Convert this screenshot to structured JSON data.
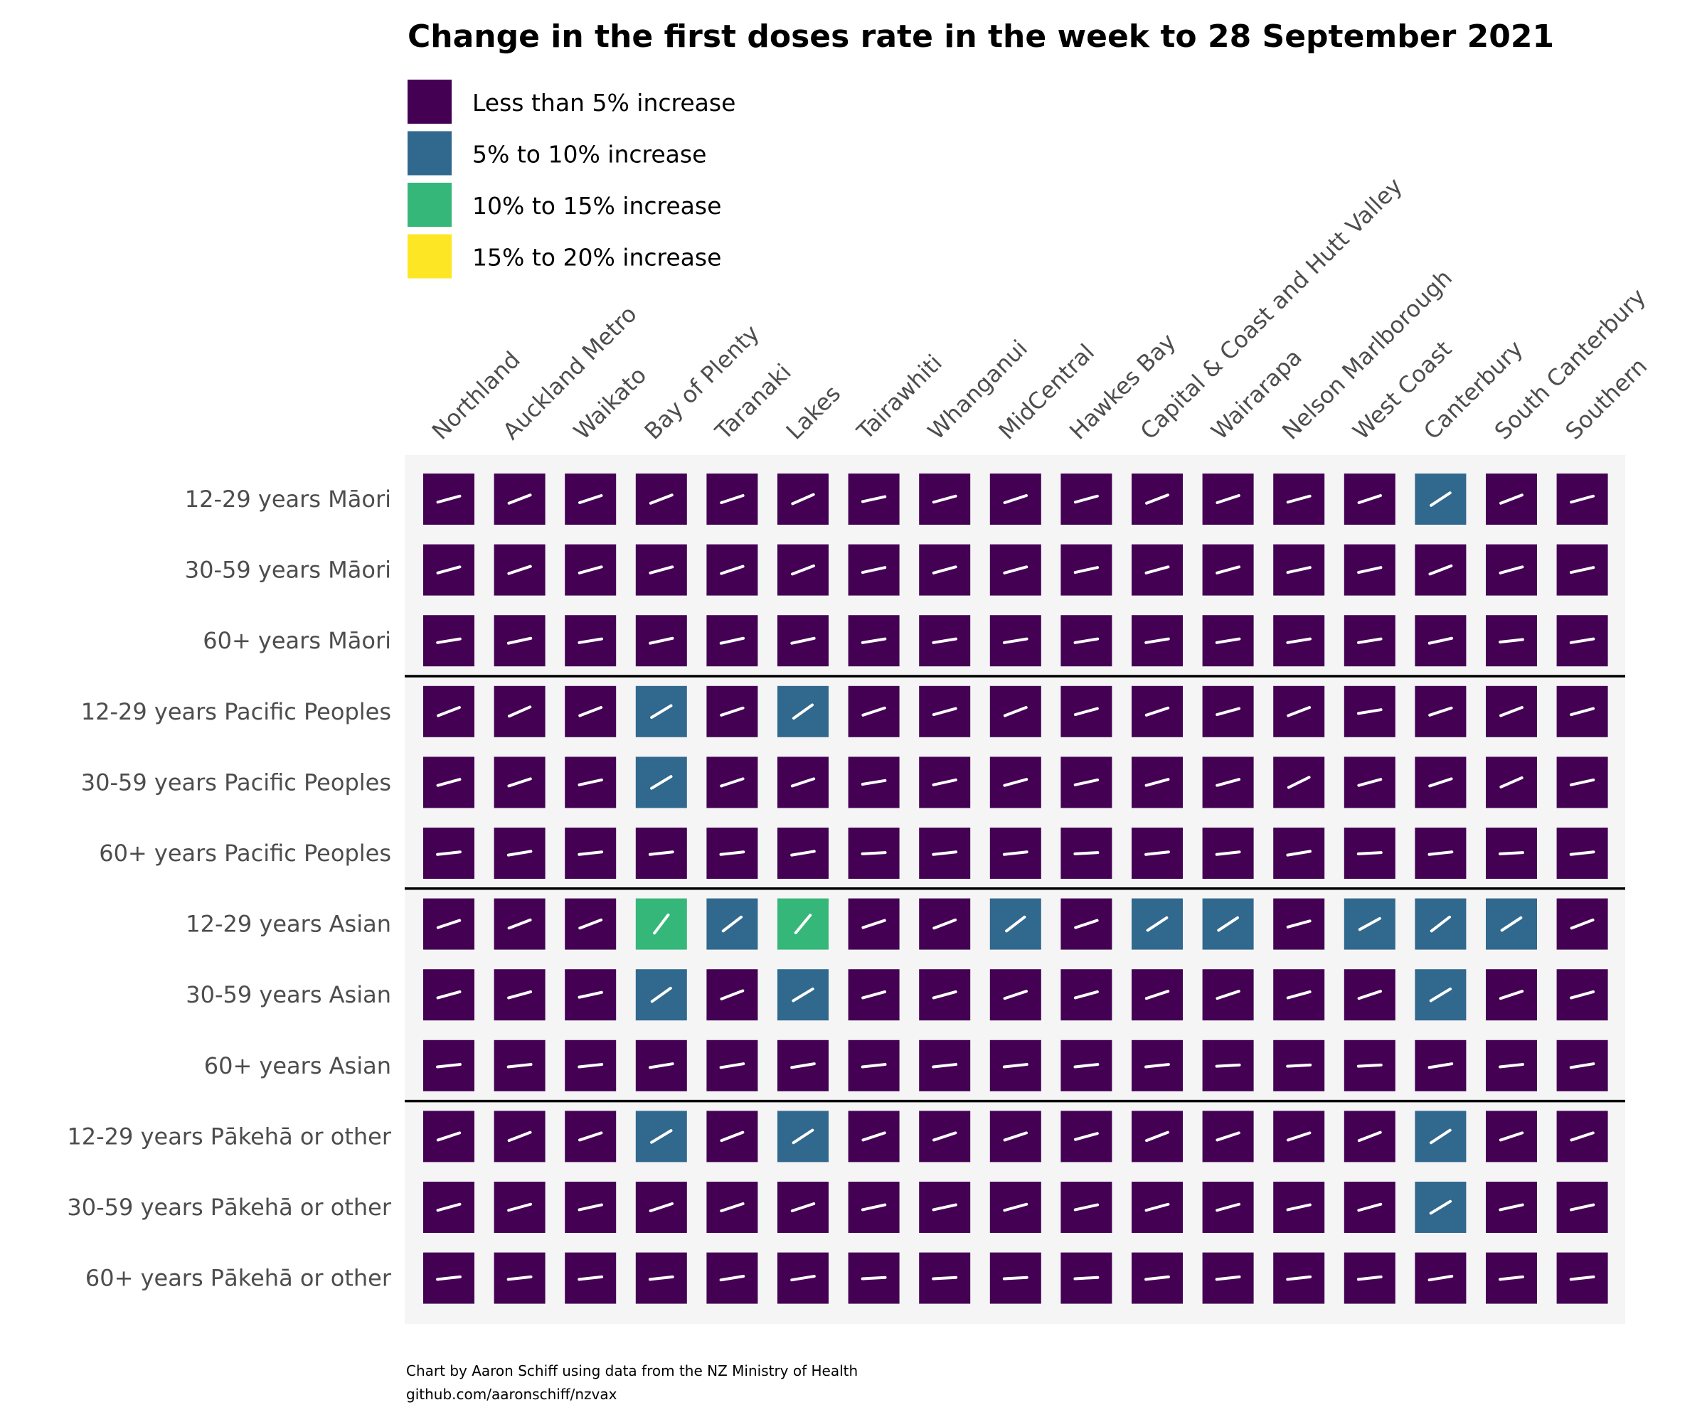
{
  "chart_data": {
    "type": "heatmap",
    "title": "Change in the first doses rate in the week to 28 September 2021",
    "columns": [
      "Northland",
      "Auckland Metro",
      "Waikato",
      "Bay of Plenty",
      "Taranaki",
      "Lakes",
      "Tairawhiti",
      "Whanganui",
      "MidCentral",
      "Hawkes Bay",
      "Capital & Coast and Hutt Valley",
      "Wairarapa",
      "Nelson Marlborough",
      "West Coast",
      "Canterbury",
      "South Canterbury",
      "Southern"
    ],
    "rows": [
      "12-29 years Māori",
      "30-59 years Māori",
      "60+ years Māori",
      "12-29 years Pacific Peoples",
      "30-59 years Pacific Peoples",
      "60+ years Pacific Peoples",
      "12-29 years Asian",
      "30-59 years Asian",
      "60+ years Asian",
      "12-29 years Pākehā or other",
      "30-59 years Pākehā or other",
      "60+ years Pākehā or other"
    ],
    "groups": [
      "Māori",
      "Pacific Peoples",
      "Asian",
      "Pākehā or other"
    ],
    "legend": [
      {
        "label": "Less than 5% increase",
        "color": "#440154"
      },
      {
        "label": "5% to 10% increase",
        "color": "#31688e"
      },
      {
        "label": "10% to 15% increase",
        "color": "#35b779"
      },
      {
        "label": "15% to 20% increase",
        "color": "#fde725"
      }
    ],
    "legend_position": "top-left",
    "values": [
      [
        2.5,
        3.5,
        3.0,
        3.5,
        3.0,
        4.0,
        2.0,
        2.5,
        3.0,
        2.5,
        3.5,
        3.0,
        2.5,
        3.0,
        6.0,
        3.5,
        2.5
      ],
      [
        2.5,
        3.0,
        2.5,
        2.5,
        3.0,
        3.5,
        2.0,
        2.5,
        2.5,
        2.0,
        2.5,
        2.5,
        2.0,
        2.0,
        3.5,
        2.5,
        2.0
      ],
      [
        1.5,
        2.0,
        1.5,
        2.0,
        2.0,
        2.0,
        1.5,
        1.5,
        1.5,
        1.5,
        1.5,
        1.5,
        1.5,
        1.5,
        2.0,
        1.0,
        1.5
      ],
      [
        3.5,
        4.0,
        3.5,
        5.5,
        3.0,
        6.5,
        3.0,
        2.5,
        3.5,
        2.5,
        3.0,
        2.5,
        3.5,
        1.5,
        3.0,
        3.5,
        2.5
      ],
      [
        2.5,
        3.0,
        2.0,
        5.5,
        3.0,
        3.0,
        1.5,
        2.0,
        2.5,
        2.0,
        2.5,
        2.5,
        4.5,
        2.5,
        3.0,
        4.0,
        2.0
      ],
      [
        1.0,
        1.5,
        1.0,
        1.0,
        1.0,
        1.5,
        0.5,
        1.0,
        1.0,
        0.5,
        1.0,
        1.0,
        1.5,
        0.5,
        1.0,
        0.5,
        1.0
      ],
      [
        3.0,
        3.5,
        3.5,
        12.0,
        7.0,
        11.0,
        3.0,
        3.5,
        7.0,
        3.0,
        6.0,
        6.0,
        2.5,
        5.0,
        7.0,
        6.0,
        3.5
      ],
      [
        2.5,
        2.5,
        2.0,
        6.5,
        3.5,
        5.5,
        2.5,
        2.5,
        3.0,
        2.5,
        3.0,
        3.0,
        2.5,
        3.0,
        5.5,
        3.0,
        2.5
      ],
      [
        1.0,
        1.0,
        1.0,
        1.5,
        1.5,
        1.5,
        1.0,
        1.0,
        1.0,
        1.0,
        1.0,
        0.5,
        0.5,
        0.5,
        1.5,
        1.0,
        1.5
      ],
      [
        3.0,
        3.5,
        3.0,
        5.5,
        3.5,
        6.0,
        3.0,
        3.0,
        3.0,
        2.5,
        3.5,
        3.0,
        3.0,
        3.5,
        6.0,
        3.0,
        3.0
      ],
      [
        2.5,
        2.5,
        2.0,
        3.0,
        3.0,
        3.0,
        2.0,
        2.0,
        2.5,
        2.0,
        2.5,
        2.5,
        2.0,
        2.5,
        5.5,
        2.0,
        2.0
      ],
      [
        1.0,
        1.0,
        1.0,
        1.0,
        1.5,
        1.5,
        0.5,
        0.5,
        0.5,
        0.5,
        1.0,
        1.0,
        1.0,
        1.0,
        1.5,
        1.0,
        1.0
      ]
    ],
    "value_bins": [
      0,
      5,
      10,
      15,
      20
    ],
    "caption": [
      "Chart by Aaron Schiff using data from the NZ Ministry of Health",
      "github.com/aaronschiff/nzvax"
    ]
  }
}
